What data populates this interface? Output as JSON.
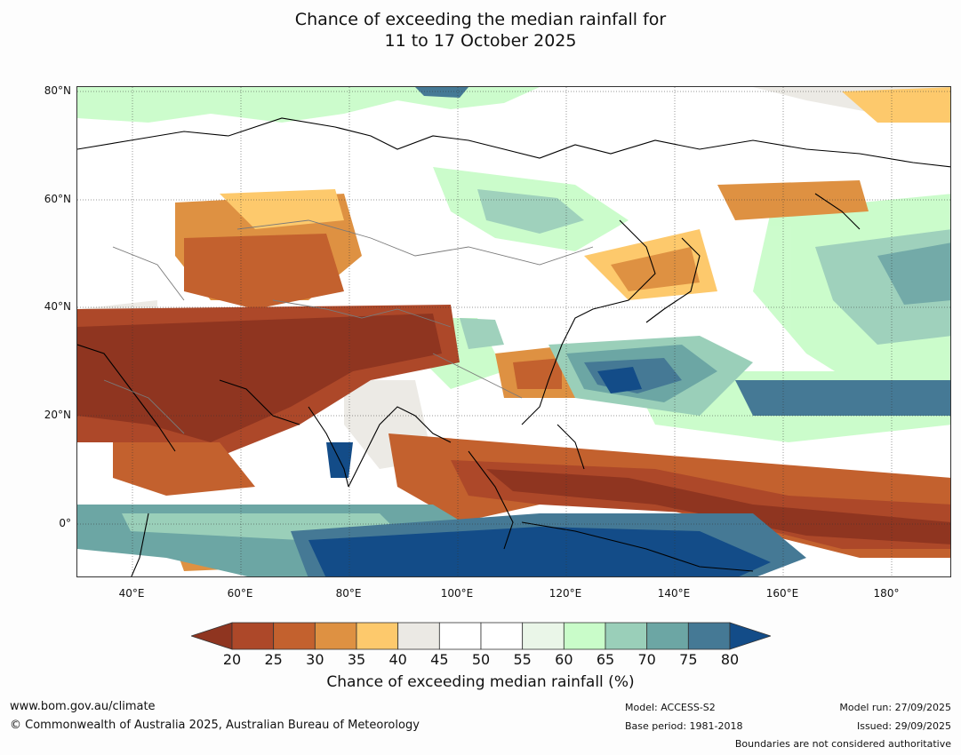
{
  "title": {
    "line1": "Chance of exceeding the median rainfall for",
    "line2": "11 to 17 October 2025"
  },
  "map": {
    "lat_labels": [
      "80°N",
      "60°N",
      "40°N",
      "20°N",
      "0°"
    ],
    "lon_labels": [
      "40°E",
      "60°E",
      "80°E",
      "100°E",
      "120°E",
      "140°E",
      "160°E",
      "180°"
    ]
  },
  "colorbar": {
    "ticks": [
      "20",
      "25",
      "30",
      "35",
      "40",
      "45",
      "50",
      "55",
      "60",
      "65",
      "70",
      "75",
      "80"
    ],
    "colors": [
      "#8f3520",
      "#ad4829",
      "#c3612e",
      "#de9142",
      "#fdc96c",
      "#ebe9e4",
      "#ffffff",
      "#ffffff",
      "#eaf6e8",
      "#c9fcc9",
      "#9acfb9",
      "#6ca6a4",
      "#457995",
      "#134c88"
    ],
    "label": "Chance of exceeding median rainfall (%)"
  },
  "footer": {
    "url": "www.bom.gov.au/climate",
    "copyright": "© Commonwealth of Australia 2025, Australian Bureau of Meteorology",
    "model": "Model: ACCESS-S2",
    "base_period": "Base period: 1981-2018",
    "model_run": "Model run: 27/09/2025",
    "issued": "Issued: 29/09/2025",
    "disclaimer": "Boundaries are not considered authoritative"
  }
}
